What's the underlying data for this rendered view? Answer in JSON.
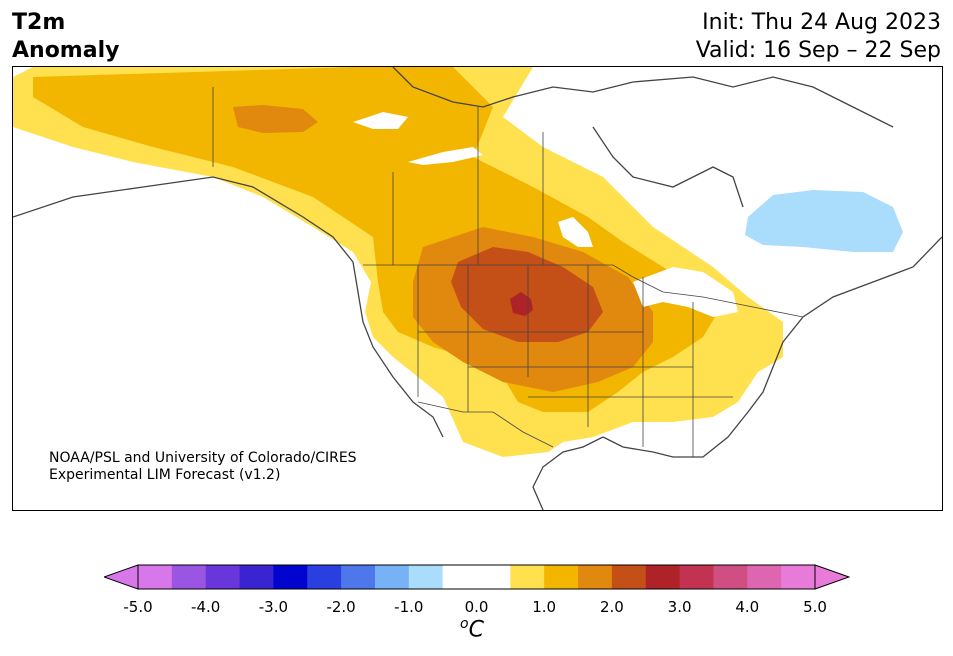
{
  "title": {
    "line1": "T2m",
    "line2": "Anomaly"
  },
  "dates": {
    "init": "Init: Thu 24 Aug 2023",
    "valid": "Valid: 16 Sep – 22 Sep"
  },
  "credit": {
    "line1": "NOAA/PSL and University of Colorado/CIRES",
    "line2": "Experimental LIM Forecast (v1.2)"
  },
  "colorbar": {
    "unit_super": "o",
    "unit_base": "C",
    "ticks": [
      "-5.0",
      "-4.0",
      "-3.0",
      "-2.0",
      "-1.0",
      "0.0",
      "1.0",
      "2.0",
      "3.0",
      "4.0",
      "5.0"
    ],
    "colors": [
      "#d877e9",
      "#9a55e2",
      "#6836db",
      "#3a23d0",
      "#0004cc",
      "#2a3fe0",
      "#4d77ea",
      "#77b2f6",
      "#aadcfb",
      "#ffffff",
      "#ffffff",
      "#ffe04f",
      "#f2b600",
      "#e1880e",
      "#c44f17",
      "#ad2327",
      "#c13350",
      "#d04f82",
      "#de65b0",
      "#e87ad9"
    ],
    "under_color": "#d877e9",
    "over_color": "#e87ad9"
  },
  "map": {
    "region": "North America",
    "anomaly_colors": {
      "plus_0_5": "#ffe04f",
      "plus_1_0": "#f2b600",
      "plus_1_5": "#e1880e",
      "plus_2_0": "#c44f17",
      "plus_2_5": "#ad2327",
      "minus_0_5": "#aadcfb"
    }
  }
}
